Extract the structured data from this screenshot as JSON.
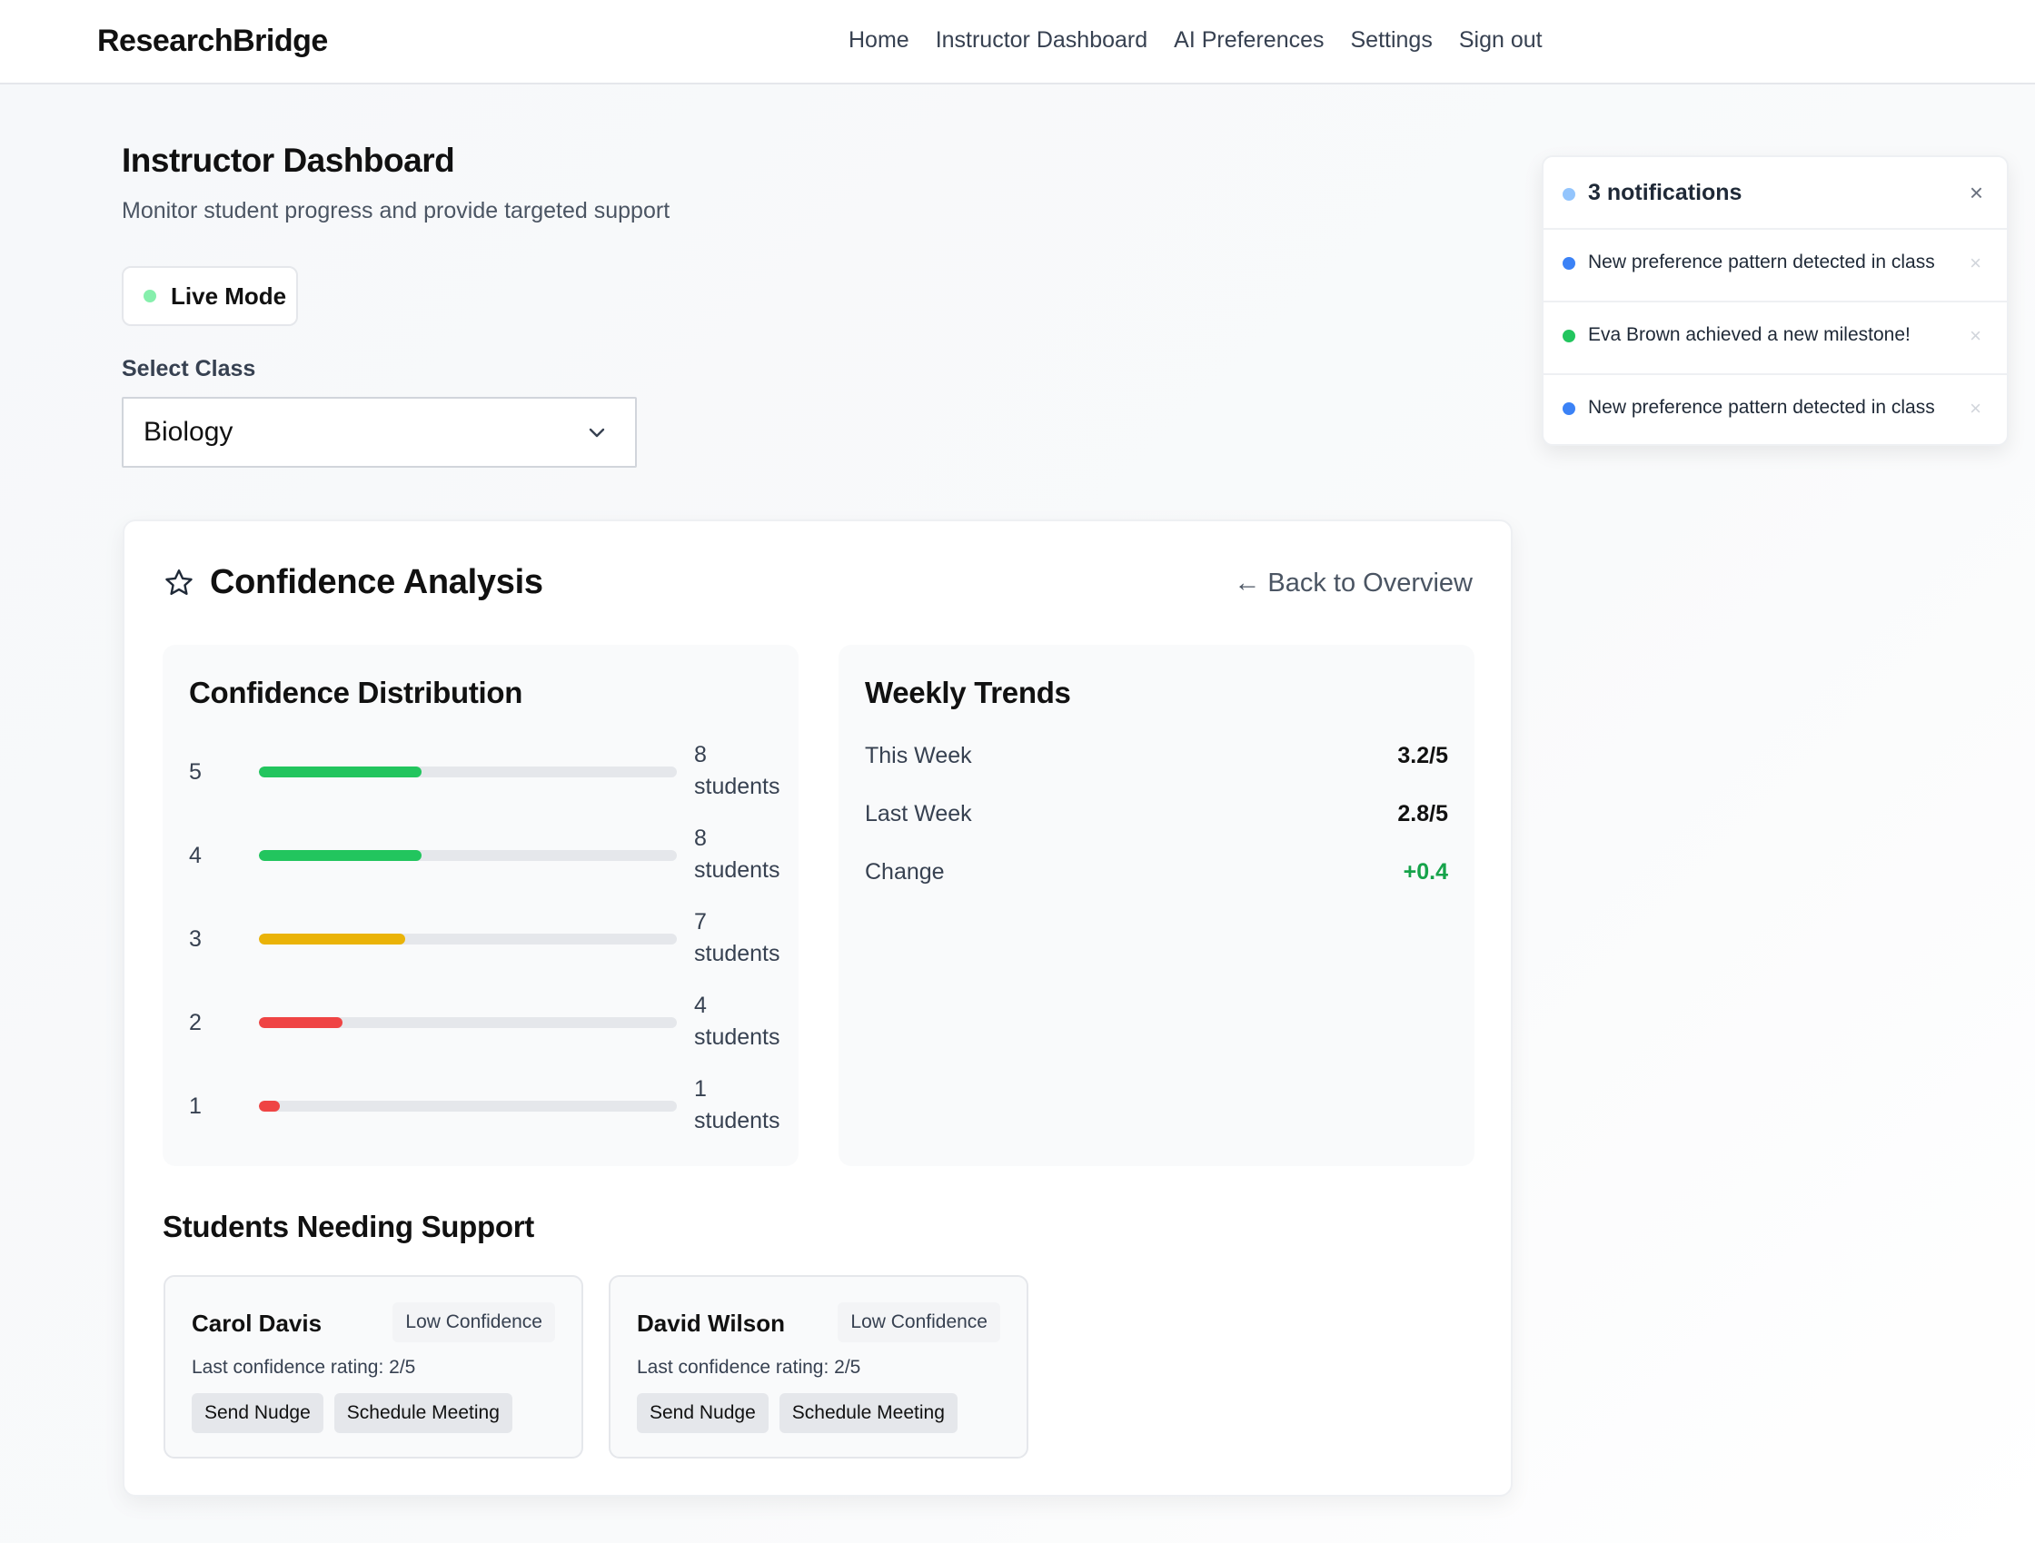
{
  "header": {
    "brand": "ResearchBridge",
    "nav": [
      "Home",
      "Instructor Dashboard",
      "AI Preferences",
      "Settings",
      "Sign out"
    ]
  },
  "page": {
    "title": "Instructor Dashboard",
    "subtitle": "Monitor student progress and provide targeted support",
    "live_mode": "Live Mode",
    "select_label": "Select Class",
    "selected_class": "Biology"
  },
  "analysis": {
    "title": "Confidence Analysis",
    "back_link": "← Back to Overview",
    "distribution": {
      "title": "Confidence Distribution",
      "rows": [
        {
          "level": "5",
          "count": "8",
          "unit": "students",
          "fill_fraction": 0.39,
          "color": "#22c55e"
        },
        {
          "level": "4",
          "count": "8",
          "unit": "students",
          "fill_fraction": 0.39,
          "color": "#22c55e"
        },
        {
          "level": "3",
          "count": "7",
          "unit": "students",
          "fill_fraction": 0.35,
          "color": "#eab308"
        },
        {
          "level": "2",
          "count": "4",
          "unit": "students",
          "fill_fraction": 0.2,
          "color": "#ef4444"
        },
        {
          "level": "1",
          "count": "1",
          "unit": "students",
          "fill_fraction": 0.05,
          "color": "#ef4444"
        }
      ]
    },
    "weekly": {
      "title": "Weekly Trends",
      "rows": [
        {
          "label": "This Week",
          "value": "3.2/5"
        },
        {
          "label": "Last Week",
          "value": "2.8/5"
        },
        {
          "label": "Change",
          "value": "+0.4"
        }
      ]
    },
    "support": {
      "title": "Students Needing Support",
      "students": [
        {
          "name": "Carol Davis",
          "badge": "Low Confidence",
          "meta": "Last confidence rating: 2/5",
          "nudge": "Send Nudge",
          "meeting": "Schedule Meeting"
        },
        {
          "name": "David Wilson",
          "badge": "Low Confidence",
          "meta": "Last confidence rating: 2/5",
          "nudge": "Send Nudge",
          "meeting": "Schedule Meeting"
        }
      ]
    }
  },
  "notifications": {
    "title": "3 notifications",
    "close": "×",
    "items": [
      {
        "text": "New preference pattern detected in class",
        "color": "#3b82f6",
        "dismiss": "×"
      },
      {
        "text": "Eva Brown achieved a new milestone!",
        "color": "#22c55e",
        "dismiss": "×"
      },
      {
        "text": "New preference pattern detected in class",
        "color": "#3b82f6",
        "dismiss": "×"
      }
    ]
  }
}
